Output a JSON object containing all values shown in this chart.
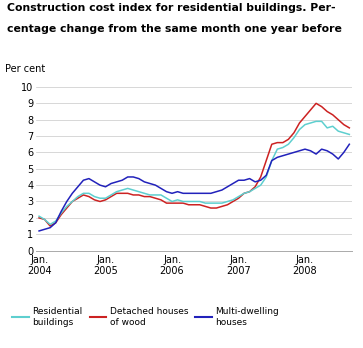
{
  "title_line1": "Construction cost index for residential buildings. Per-",
  "title_line2": "centage change from the same month one year before",
  "ylabel": "Per cent",
  "ylim": [
    0,
    10
  ],
  "yticks": [
    0,
    1,
    2,
    3,
    4,
    5,
    6,
    7,
    8,
    9,
    10
  ],
  "xtick_labels": [
    "Jan.\n2004",
    "Jan.\n2005",
    "Jan.\n2006",
    "Jan.\n2007",
    "Jan.\n2008"
  ],
  "xtick_positions": [
    0,
    12,
    24,
    36,
    48
  ],
  "colors": {
    "residential": "#5ecfcf",
    "detached": "#cc2222",
    "multi": "#2222bb"
  },
  "residential": [
    2.1,
    1.9,
    1.6,
    1.8,
    2.3,
    2.7,
    3.0,
    3.3,
    3.5,
    3.5,
    3.3,
    3.2,
    3.2,
    3.4,
    3.6,
    3.7,
    3.8,
    3.7,
    3.6,
    3.5,
    3.4,
    3.4,
    3.4,
    3.2,
    3.0,
    3.1,
    3.0,
    3.0,
    3.0,
    3.0,
    2.9,
    2.9,
    2.9,
    2.9,
    3.0,
    3.1,
    3.3,
    3.5,
    3.6,
    3.8,
    4.0,
    4.5,
    5.5,
    6.2,
    6.3,
    6.5,
    6.9,
    7.4,
    7.7,
    7.8,
    7.9,
    7.9,
    7.5,
    7.6,
    7.3,
    7.2,
    7.1
  ],
  "detached": [
    2.0,
    1.9,
    1.5,
    1.7,
    2.2,
    2.6,
    3.0,
    3.2,
    3.4,
    3.3,
    3.1,
    3.0,
    3.1,
    3.3,
    3.5,
    3.5,
    3.5,
    3.4,
    3.4,
    3.3,
    3.3,
    3.2,
    3.1,
    2.9,
    2.9,
    2.9,
    2.9,
    2.8,
    2.8,
    2.8,
    2.7,
    2.6,
    2.6,
    2.7,
    2.8,
    3.0,
    3.2,
    3.5,
    3.6,
    3.9,
    4.5,
    5.5,
    6.5,
    6.6,
    6.6,
    6.8,
    7.2,
    7.8,
    8.2,
    8.6,
    9.0,
    8.8,
    8.5,
    8.3,
    8.0,
    7.7,
    7.5
  ],
  "multi": [
    1.2,
    1.3,
    1.4,
    1.7,
    2.4,
    3.0,
    3.5,
    3.9,
    4.3,
    4.4,
    4.2,
    4.0,
    3.9,
    4.1,
    4.2,
    4.3,
    4.5,
    4.5,
    4.4,
    4.2,
    4.1,
    4.0,
    3.8,
    3.6,
    3.5,
    3.6,
    3.5,
    3.5,
    3.5,
    3.5,
    3.5,
    3.5,
    3.6,
    3.7,
    3.9,
    4.1,
    4.3,
    4.3,
    4.4,
    4.2,
    4.3,
    4.6,
    5.5,
    5.7,
    5.8,
    5.9,
    6.0,
    6.1,
    6.2,
    6.1,
    5.9,
    6.2,
    6.1,
    5.9,
    5.6,
    6.0,
    6.5
  ],
  "legend": [
    {
      "label": "Residential\nbuildings",
      "color": "#5ecfcf"
    },
    {
      "label": "Detached houses\nof wood",
      "color": "#cc2222"
    },
    {
      "label": "Multi-dwelling\nhouses",
      "color": "#2222bb"
    }
  ],
  "background_color": "#ffffff",
  "grid_color": "#c8c8c8"
}
